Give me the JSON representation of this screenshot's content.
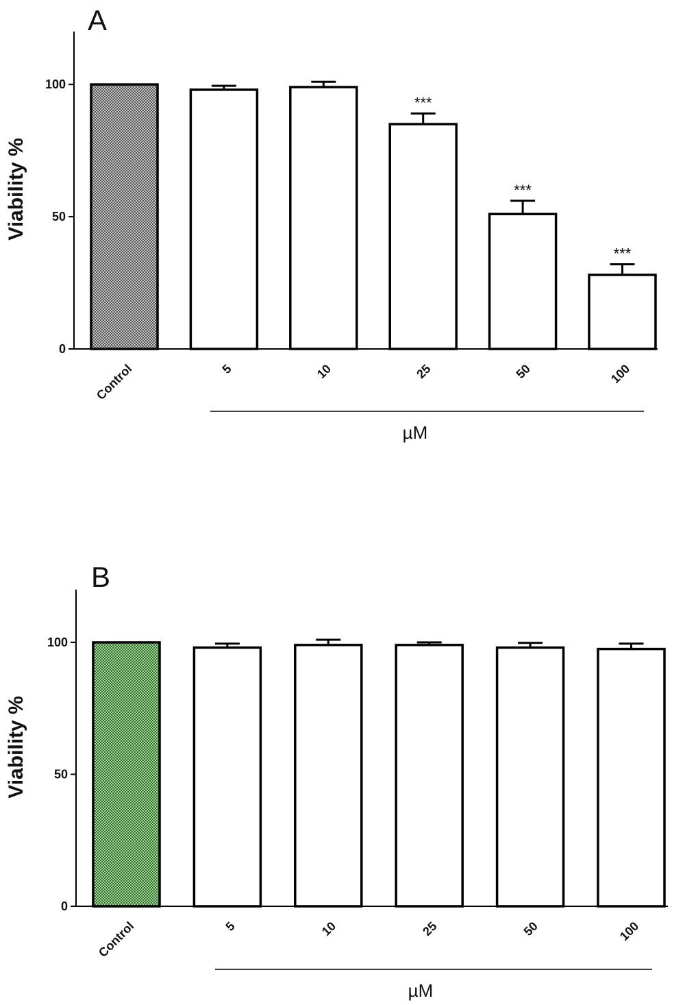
{
  "chart_data": [
    {
      "type": "bar",
      "panel": "A",
      "categories": [
        "Control",
        "5",
        "10",
        "25",
        "50",
        "100"
      ],
      "values": [
        100,
        98,
        99,
        85,
        51,
        28
      ],
      "errors": [
        0,
        1.5,
        2,
        4,
        5,
        4
      ],
      "significance": [
        "",
        "",
        "",
        "***",
        "***",
        "***"
      ],
      "xlabel": "µM",
      "ylabel": "Viability %",
      "ylim": [
        0,
        120
      ],
      "yticks": [
        0,
        50,
        100
      ],
      "grid": false,
      "colors": {
        "control_fill": "#c8c8c8",
        "control_pattern": "#555555",
        "bar_fill": "#ffffff",
        "stroke": "#000000"
      }
    },
    {
      "type": "bar",
      "panel": "B",
      "categories": [
        "Control",
        "5",
        "10",
        "25",
        "50",
        "100"
      ],
      "values": [
        100,
        98,
        99,
        99,
        98,
        97.5
      ],
      "errors": [
        0,
        1.5,
        2,
        1,
        1.8,
        2
      ],
      "significance": [
        "",
        "",
        "",
        "",
        "",
        ""
      ],
      "xlabel": "µM",
      "ylabel": "Viability %",
      "ylim": [
        0,
        120
      ],
      "yticks": [
        0,
        50,
        100
      ],
      "grid": false,
      "colors": {
        "control_fill": "#a9dca0",
        "control_pattern": "#2e6b2a",
        "bar_fill": "#ffffff",
        "stroke": "#000000"
      }
    }
  ]
}
